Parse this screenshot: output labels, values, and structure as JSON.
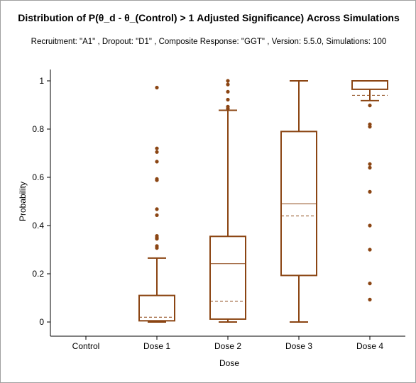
{
  "chart_data": {
    "type": "boxplot",
    "title": "Distribution of P(θ_d - θ_(Control) > 1 Adjusted Significance) Across Simulations",
    "subtitle": "Recruitment: \"A1\" , Dropout: \"D1\" , Composite Response: \"GGT\" , Version: 5.5.0, Simulations: 100",
    "xlabel": "Dose",
    "ylabel": "Probability",
    "ylim": [
      0,
      1
    ],
    "yticks": [
      {
        "value": 0,
        "label": "0"
      },
      {
        "value": 0.2,
        "label": "0.2"
      },
      {
        "value": 0.4,
        "label": "0.4"
      },
      {
        "value": 0.6,
        "label": "0.6"
      },
      {
        "value": 0.8,
        "label": "0.8"
      },
      {
        "value": 1,
        "label": "1"
      }
    ],
    "categories": [
      "Control",
      "Dose 1",
      "Dose 2",
      "Dose 3",
      "Dose 4"
    ],
    "color": "#8b4513",
    "series": [
      {
        "category": "Control",
        "box": null
      },
      {
        "category": "Dose 1",
        "box": {
          "whisker_low": 0.0,
          "q1": 0.005,
          "median": 0.11,
          "q3": 0.11,
          "whisker_high": 0.265,
          "mean": 0.02,
          "outliers": [
            0.972,
            0.72,
            0.705,
            0.665,
            0.593,
            0.588,
            0.468,
            0.443,
            0.357,
            0.35,
            0.345,
            0.315,
            0.307
          ]
        }
      },
      {
        "category": "Dose 2",
        "box": {
          "whisker_low": 0.0,
          "q1": 0.012,
          "median": 0.242,
          "q3": 0.355,
          "whisker_high": 0.878,
          "mean": 0.086,
          "outliers": [
            1.0,
            0.985,
            0.955,
            0.922,
            0.893,
            0.885
          ]
        }
      },
      {
        "category": "Dose 3",
        "box": {
          "whisker_low": 0.0,
          "q1": 0.193,
          "median": 0.49,
          "q3": 0.79,
          "whisker_high": 1.0,
          "mean": 0.44,
          "outliers": []
        }
      },
      {
        "category": "Dose 4",
        "box": {
          "whisker_low": 0.918,
          "q1": 0.965,
          "median": 1.0,
          "q3": 1.0,
          "whisker_high": 1.0,
          "mean": 0.94,
          "outliers": [
            0.898,
            0.82,
            0.81,
            0.655,
            0.64,
            0.54,
            0.4,
            0.3,
            0.16,
            0.093
          ]
        }
      }
    ]
  }
}
